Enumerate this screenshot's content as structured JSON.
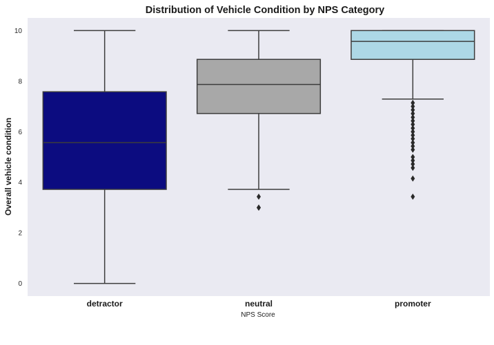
{
  "chart_data": {
    "type": "box",
    "title": "Distribution of Vehicle Condition by NPS Category",
    "xlabel": "NPS Score",
    "ylabel": "Overall vehicle condition",
    "ylim": [
      -0.5,
      10.5
    ],
    "yticks": [
      0,
      2,
      4,
      6,
      8,
      10
    ],
    "grid": false,
    "background_color": "#eaeaf2",
    "categories": [
      "detractor",
      "neutral",
      "promoter"
    ],
    "series": [
      {
        "category": "detractor",
        "color": "#0c0c80",
        "whisker_low": 0,
        "q1": 3.72,
        "median": 5.57,
        "q3": 7.58,
        "whisker_high": 10,
        "outliers": []
      },
      {
        "category": "neutral",
        "color": "#a8a8a8",
        "whisker_low": 3.72,
        "q1": 6.72,
        "median": 7.87,
        "q3": 8.86,
        "whisker_high": 10,
        "outliers": [
          3.43,
          3.0,
          3.0
        ]
      },
      {
        "category": "promoter",
        "color": "#add8e6",
        "whisker_low": 7.29,
        "q1": 8.86,
        "median": 9.57,
        "q3": 10,
        "whisker_high": 10,
        "outliers": [
          7.14,
          7.0,
          6.86,
          6.72,
          6.57,
          6.43,
          6.29,
          6.14,
          6.0,
          5.86,
          5.72,
          5.57,
          5.43,
          5.29,
          5.0,
          4.86,
          4.72,
          4.57,
          4.15,
          3.43
        ]
      }
    ]
  }
}
